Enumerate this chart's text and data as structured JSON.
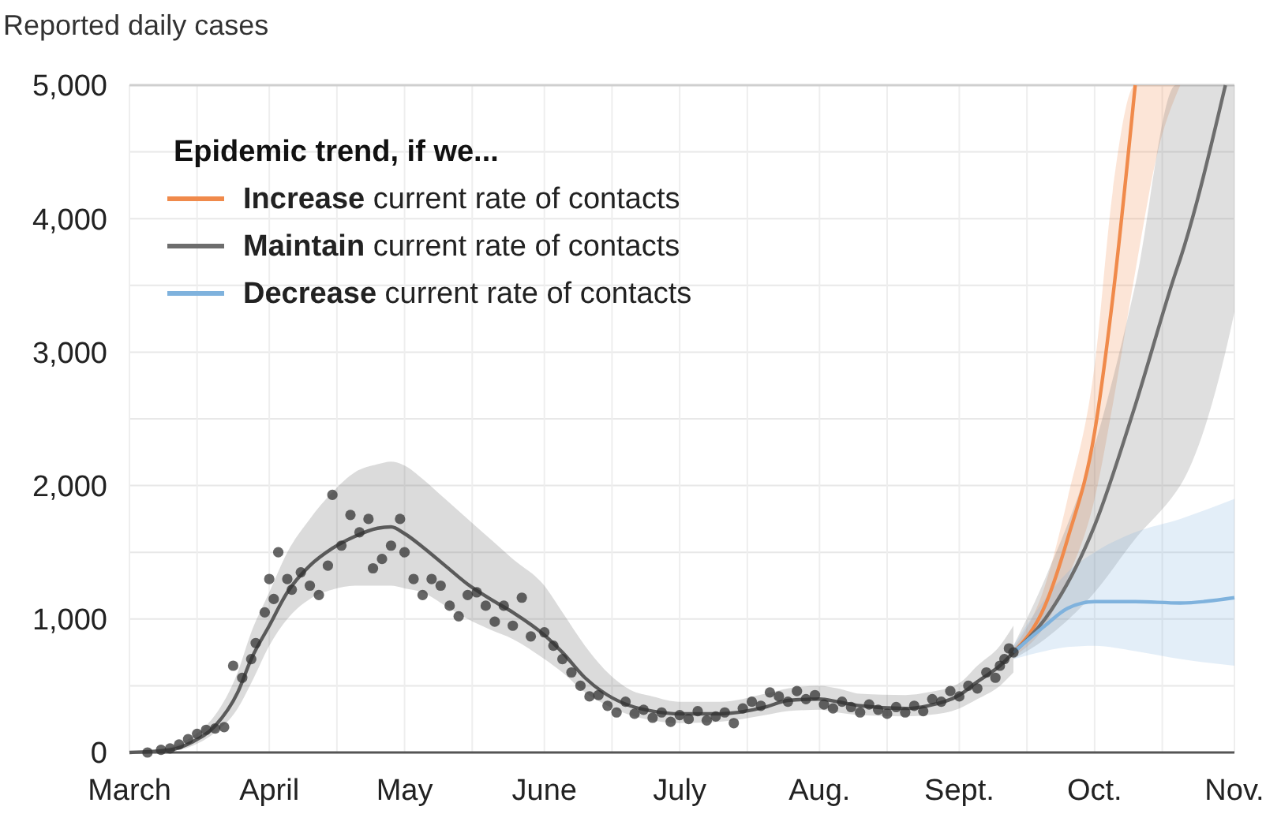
{
  "chart_data": {
    "type": "line",
    "ylabel": "Reported daily cases",
    "legend_title": "Epidemic trend, if we...",
    "legend": "top left",
    "grid": true,
    "xlim": [
      "--03-01",
      "--11-01"
    ],
    "xticks": [
      {
        "value": "--03-01",
        "label": "March"
      },
      {
        "value": "--03-16",
        "label": null
      },
      {
        "value": "--04-01",
        "label": "April"
      },
      {
        "value": "--04-16",
        "label": null
      },
      {
        "value": "--05-01",
        "label": "May"
      },
      {
        "value": "--05-16",
        "label": null
      },
      {
        "value": "--06-01",
        "label": "June"
      },
      {
        "value": "--06-16",
        "label": null
      },
      {
        "value": "--07-01",
        "label": "July"
      },
      {
        "value": "--07-16",
        "label": null
      },
      {
        "value": "--08-01",
        "label": "Aug."
      },
      {
        "value": "--08-16",
        "label": null
      },
      {
        "value": "--09-01",
        "label": "Sept."
      },
      {
        "value": "--09-16",
        "label": null
      },
      {
        "value": "--10-01",
        "label": "Oct."
      },
      {
        "value": "--10-16",
        "label": null
      },
      {
        "value": "--11-01",
        "label": "Nov."
      }
    ],
    "ylim": [
      0,
      5000
    ],
    "yticks": [
      {
        "value": 0,
        "label": "0"
      },
      {
        "value": 500,
        "label": null
      },
      {
        "value": 1000,
        "label": "1,000"
      },
      {
        "value": 1500,
        "label": null
      },
      {
        "value": 2000,
        "label": "2,000"
      },
      {
        "value": 2500,
        "label": null
      },
      {
        "value": 3000,
        "label": "3,000"
      },
      {
        "value": 3500,
        "label": null
      },
      {
        "value": 4000,
        "label": "4,000"
      },
      {
        "value": 4500,
        "label": null
      },
      {
        "value": 5000,
        "label": "5,000"
      }
    ],
    "series": [
      {
        "color": "#5a5a5a",
        "x": [
          "--03-01",
          "--03-10",
          "--03-15",
          "--03-20",
          "--03-25",
          "--03-28",
          "--04-01",
          "--04-05",
          "--04-10",
          "--04-15",
          "--04-20",
          "--04-25",
          "--04-28",
          "--05-01",
          "--05-05",
          "--05-10",
          "--05-15",
          "--05-20",
          "--05-25",
          "--06-01",
          "--06-05",
          "--06-10",
          "--06-15",
          "--06-20",
          "--06-25",
          "--07-01",
          "--07-10",
          "--07-20",
          "--07-25",
          "--08-01",
          "--08-05",
          "--08-10",
          "--08-20",
          "--08-25",
          "--09-01",
          "--09-05",
          "--09-10",
          "--09-13"
        ],
        "values": [
          0,
          20,
          80,
          200,
          450,
          700,
          950,
          1200,
          1400,
          1530,
          1620,
          1680,
          1690,
          1640,
          1540,
          1400,
          1260,
          1150,
          1050,
          880,
          750,
          560,
          430,
          350,
          310,
          290,
          290,
          340,
          390,
          400,
          380,
          350,
          330,
          350,
          430,
          530,
          650,
          750
        ],
        "lower": [
          0,
          10,
          50,
          150,
          330,
          520,
          800,
          1000,
          1150,
          1220,
          1250,
          1250,
          1250,
          1230,
          1200,
          1100,
          1000,
          920,
          850,
          700,
          600,
          450,
          350,
          280,
          240,
          220,
          230,
          280,
          310,
          320,
          300,
          280,
          270,
          280,
          330,
          400,
          500,
          600
        ],
        "upper": [
          0,
          40,
          120,
          280,
          600,
          900,
          1200,
          1500,
          1750,
          1950,
          2100,
          2160,
          2180,
          2150,
          2050,
          1900,
          1750,
          1600,
          1450,
          1250,
          1050,
          800,
          600,
          470,
          420,
          380,
          380,
          440,
          480,
          500,
          480,
          440,
          430,
          450,
          520,
          650,
          800,
          950
        ]
      },
      {
        "type": "scatter",
        "color": "#333333",
        "marker": "circle",
        "x": [
          "--03-05",
          "--03-08",
          "--03-10",
          "--03-12",
          "--03-14",
          "--03-16",
          "--03-18",
          "--03-20",
          "--03-22",
          "--03-24",
          "--03-26",
          "--03-28",
          "--03-29",
          "--03-31",
          "--04-01",
          "--04-02",
          "--04-03",
          "--04-05",
          "--04-06",
          "--04-08",
          "--04-10",
          "--04-12",
          "--04-14",
          "--04-15",
          "--04-17",
          "--04-19",
          "--04-21",
          "--04-23",
          "--04-24",
          "--04-26",
          "--04-28",
          "--04-30",
          "--05-01",
          "--05-03",
          "--05-05",
          "--05-07",
          "--05-09",
          "--05-11",
          "--05-13",
          "--05-15",
          "--05-17",
          "--05-19",
          "--05-21",
          "--05-23",
          "--05-25",
          "--05-27",
          "--05-29",
          "--06-01",
          "--06-03",
          "--06-05",
          "--06-07",
          "--06-09",
          "--06-11",
          "--06-13",
          "--06-15",
          "--06-17",
          "--06-19",
          "--06-21",
          "--06-23",
          "--06-25",
          "--06-27",
          "--06-29",
          "--07-01",
          "--07-03",
          "--07-05",
          "--07-07",
          "--07-09",
          "--07-11",
          "--07-13",
          "--07-15",
          "--07-17",
          "--07-19",
          "--07-21",
          "--07-23",
          "--07-25",
          "--07-27",
          "--07-29",
          "--07-31",
          "--08-02",
          "--08-04",
          "--08-06",
          "--08-08",
          "--08-10",
          "--08-12",
          "--08-14",
          "--08-16",
          "--08-18",
          "--08-20",
          "--08-22",
          "--08-24",
          "--08-26",
          "--08-28",
          "--08-30",
          "--09-01",
          "--09-03",
          "--09-05",
          "--09-07",
          "--09-09",
          "--09-10",
          "--09-11",
          "--09-12",
          "--09-13"
        ],
        "values": [
          0,
          20,
          30,
          60,
          100,
          140,
          170,
          180,
          190,
          650,
          560,
          700,
          820,
          1050,
          1300,
          1150,
          1500,
          1300,
          1220,
          1350,
          1250,
          1180,
          1400,
          1930,
          1550,
          1780,
          1650,
          1750,
          1380,
          1450,
          1550,
          1750,
          1500,
          1300,
          1180,
          1300,
          1250,
          1100,
          1020,
          1180,
          1200,
          1100,
          980,
          1100,
          950,
          1160,
          870,
          900,
          800,
          700,
          600,
          500,
          420,
          430,
          350,
          300,
          380,
          290,
          320,
          260,
          300,
          230,
          280,
          250,
          310,
          240,
          270,
          300,
          220,
          330,
          380,
          350,
          450,
          420,
          380,
          460,
          400,
          430,
          360,
          330,
          380,
          340,
          300,
          360,
          320,
          290,
          340,
          300,
          350,
          310,
          400,
          380,
          460,
          420,
          500,
          480,
          600,
          560,
          650,
          700,
          780,
          750
        ]
      },
      {
        "name": "Increase current rate of contacts",
        "color": "#f08a4b",
        "x": [
          "--09-13",
          "--09-20",
          "--09-25",
          "--10-01",
          "--10-05",
          "--10-10",
          "--10-15",
          "--10-20"
        ],
        "values": [
          750,
          1100,
          1600,
          2400,
          3400,
          5000,
          null,
          null
        ],
        "lower": [
          720,
          950,
          1300,
          1900,
          2600,
          3600,
          4500,
          5000
        ],
        "upper": [
          780,
          1250,
          1900,
          2900,
          4200,
          5000,
          5000,
          5000
        ]
      },
      {
        "name": "Maintain current rate of contacts",
        "color": "#6d6d6d",
        "x": [
          "--09-13",
          "--09-20",
          "--10-01",
          "--10-10",
          "--10-19",
          "--10-20",
          "--10-30",
          "--11-01"
        ],
        "values": [
          750,
          1000,
          1700,
          2600,
          3600,
          3700,
          5000,
          null
        ],
        "lower": [
          700,
          850,
          1200,
          1600,
          1950,
          2000,
          3000,
          3300
        ],
        "upper": [
          800,
          1300,
          2300,
          3500,
          5000,
          5000,
          5000,
          5000
        ]
      },
      {
        "name": "Decrease current rate of contacts",
        "color": "#7fb2dd",
        "x": [
          "--09-13",
          "--09-20",
          "--09-25",
          "--10-01",
          "--10-10",
          "--10-20",
          "--11-01"
        ],
        "values": [
          750,
          950,
          1080,
          1130,
          1130,
          1120,
          1160
        ],
        "lower": [
          700,
          760,
          790,
          800,
          760,
          700,
          650
        ],
        "upper": [
          800,
          1150,
          1350,
          1500,
          1650,
          1750,
          1900
        ]
      }
    ]
  }
}
